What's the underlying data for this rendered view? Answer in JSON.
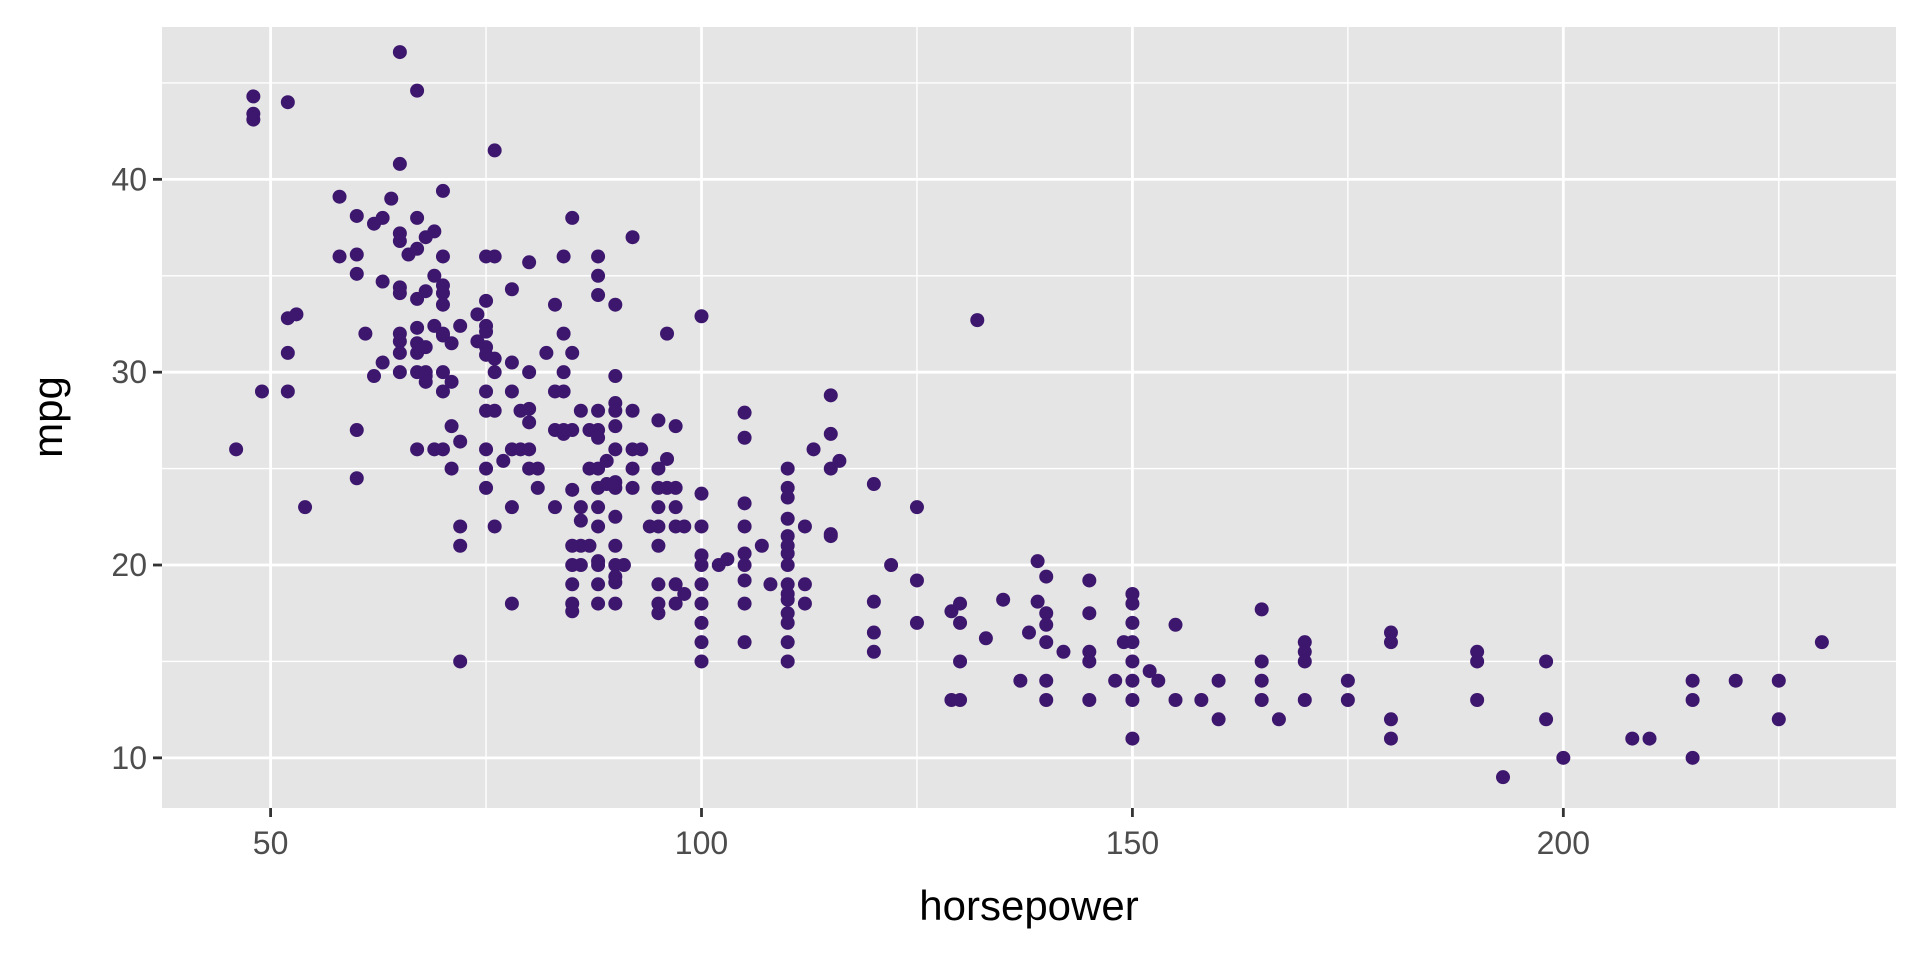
{
  "chart_data": {
    "type": "scatter",
    "title": "",
    "xlabel": "horsepower",
    "ylabel": "mpg",
    "xlim": [
      37.4,
      238.6
    ],
    "ylim": [
      7.4,
      47.9
    ],
    "xticks": [
      50,
      100,
      150,
      200
    ],
    "yticks": [
      10,
      20,
      30,
      40
    ],
    "xtick_labels": [
      "50",
      "100",
      "150",
      "200"
    ],
    "ytick_labels": [
      "10",
      "20",
      "30",
      "40"
    ],
    "grid": true,
    "legend": "none",
    "colors": {
      "panel": "#e5e5e5",
      "grid_major": "#ffffff",
      "point": "#3d176e",
      "tick_text": "#4d4d4d",
      "axis_title": "#000000"
    },
    "points": [
      [
        46,
        26
      ],
      [
        48,
        43.1
      ],
      [
        48,
        43.4
      ],
      [
        48,
        44.3
      ],
      [
        49,
        29
      ],
      [
        52,
        29
      ],
      [
        52,
        31
      ],
      [
        52,
        32.8
      ],
      [
        52,
        44
      ],
      [
        53,
        33
      ],
      [
        54,
        23
      ],
      [
        58,
        36
      ],
      [
        58,
        39.1
      ],
      [
        60,
        36.1
      ],
      [
        60,
        38.1
      ],
      [
        60,
        35.1
      ],
      [
        60,
        27
      ],
      [
        60,
        24.5
      ],
      [
        61,
        32
      ],
      [
        62,
        37.7
      ],
      [
        62,
        29.8
      ],
      [
        63,
        38
      ],
      [
        63,
        34.7
      ],
      [
        63,
        30.5
      ],
      [
        64,
        39
      ],
      [
        65,
        46.6
      ],
      [
        65,
        40.8
      ],
      [
        65,
        37.2
      ],
      [
        65,
        36.8
      ],
      [
        65,
        34.4
      ],
      [
        65,
        34.1
      ],
      [
        65,
        32
      ],
      [
        65,
        31.6
      ],
      [
        65,
        31
      ],
      [
        65,
        30
      ],
      [
        66,
        36.1
      ],
      [
        67,
        44.6
      ],
      [
        67,
        38
      ],
      [
        67,
        36.4
      ],
      [
        67,
        33.8
      ],
      [
        67,
        32.3
      ],
      [
        67,
        31.5
      ],
      [
        67,
        31
      ],
      [
        67,
        30
      ],
      [
        67,
        26
      ],
      [
        68,
        37
      ],
      [
        68,
        34.2
      ],
      [
        68,
        31.3
      ],
      [
        68,
        29.8
      ],
      [
        68,
        29.5
      ],
      [
        68,
        30
      ],
      [
        69,
        37.3
      ],
      [
        69,
        35
      ],
      [
        69,
        32.4
      ],
      [
        69,
        26
      ],
      [
        70,
        39.4
      ],
      [
        70,
        36
      ],
      [
        70,
        34.5
      ],
      [
        70,
        34.1
      ],
      [
        70,
        33.5
      ],
      [
        70,
        32
      ],
      [
        70,
        31.9
      ],
      [
        70,
        30
      ],
      [
        70,
        29
      ],
      [
        70,
        26
      ],
      [
        71,
        31.5
      ],
      [
        71,
        29.5
      ],
      [
        71,
        27.2
      ],
      [
        71,
        25
      ],
      [
        72,
        32.4
      ],
      [
        72,
        26.4
      ],
      [
        72,
        22
      ],
      [
        72,
        21
      ],
      [
        72,
        15
      ],
      [
        74,
        31.6
      ],
      [
        74,
        33
      ],
      [
        75,
        36
      ],
      [
        75,
        33.7
      ],
      [
        75,
        32.4
      ],
      [
        75,
        32.1
      ],
      [
        75,
        31.3
      ],
      [
        75,
        30.9
      ],
      [
        75,
        29
      ],
      [
        75,
        28
      ],
      [
        75,
        26
      ],
      [
        75,
        25
      ],
      [
        75,
        24
      ],
      [
        76,
        36
      ],
      [
        76,
        41.5
      ],
      [
        76,
        30.7
      ],
      [
        76,
        30
      ],
      [
        76,
        28
      ],
      [
        76,
        22
      ],
      [
        77,
        25.4
      ],
      [
        78,
        34.3
      ],
      [
        78,
        30.5
      ],
      [
        78,
        29
      ],
      [
        78,
        26
      ],
      [
        78,
        23
      ],
      [
        78,
        18
      ],
      [
        79,
        28
      ],
      [
        79,
        26
      ],
      [
        80,
        35.7
      ],
      [
        80,
        30
      ],
      [
        80,
        28.1
      ],
      [
        80,
        26
      ],
      [
        80,
        27.4
      ],
      [
        80,
        25
      ],
      [
        81,
        25
      ],
      [
        81,
        24
      ],
      [
        82,
        31
      ],
      [
        83,
        33.5
      ],
      [
        83,
        29
      ],
      [
        83,
        27
      ],
      [
        83,
        23
      ],
      [
        84,
        26.8
      ],
      [
        84,
        27
      ],
      [
        84,
        32
      ],
      [
        84,
        30
      ],
      [
        84,
        29
      ],
      [
        84,
        36
      ],
      [
        85,
        38
      ],
      [
        85,
        31
      ],
      [
        85,
        27
      ],
      [
        85,
        23.9
      ],
      [
        85,
        21
      ],
      [
        85,
        20
      ],
      [
        85,
        19
      ],
      [
        85,
        18
      ],
      [
        85,
        17.6
      ],
      [
        86,
        28
      ],
      [
        86,
        22.3
      ],
      [
        86,
        21
      ],
      [
        86,
        20
      ],
      [
        86,
        23
      ],
      [
        87,
        27
      ],
      [
        87,
        25
      ],
      [
        87,
        21
      ],
      [
        88,
        36
      ],
      [
        88,
        35
      ],
      [
        88,
        34
      ],
      [
        88,
        28
      ],
      [
        88,
        27
      ],
      [
        88,
        26.6
      ],
      [
        88,
        25
      ],
      [
        88,
        24
      ],
      [
        88,
        23
      ],
      [
        88,
        22
      ],
      [
        88,
        20.2
      ],
      [
        88,
        20
      ],
      [
        88,
        19
      ],
      [
        88,
        18
      ],
      [
        89,
        25.4
      ],
      [
        89,
        24.2
      ],
      [
        90,
        33.5
      ],
      [
        90,
        29.8
      ],
      [
        90,
        28.4
      ],
      [
        90,
        28
      ],
      [
        90,
        27.2
      ],
      [
        90,
        26
      ],
      [
        90,
        24.3
      ],
      [
        90,
        24
      ],
      [
        90,
        22.5
      ],
      [
        90,
        21
      ],
      [
        90,
        20
      ],
      [
        90,
        19.4
      ],
      [
        90,
        19.1
      ],
      [
        90,
        18
      ],
      [
        91,
        20
      ],
      [
        92,
        37
      ],
      [
        92,
        28
      ],
      [
        92,
        26
      ],
      [
        92,
        25
      ],
      [
        92,
        24
      ],
      [
        93,
        26
      ],
      [
        94,
        22
      ],
      [
        95,
        27.5
      ],
      [
        95,
        25
      ],
      [
        95,
        24
      ],
      [
        95,
        23
      ],
      [
        95,
        22
      ],
      [
        95,
        21
      ],
      [
        95,
        19
      ],
      [
        95,
        18
      ],
      [
        95,
        17.5
      ],
      [
        96,
        32
      ],
      [
        96,
        25.5
      ],
      [
        96,
        24
      ],
      [
        97,
        27.2
      ],
      [
        97,
        24
      ],
      [
        97,
        23
      ],
      [
        97,
        22
      ],
      [
        97,
        19
      ],
      [
        97,
        18
      ],
      [
        98,
        22
      ],
      [
        98,
        18.5
      ],
      [
        100,
        32.9
      ],
      [
        100,
        23.7
      ],
      [
        100,
        22
      ],
      [
        100,
        20.5
      ],
      [
        100,
        20
      ],
      [
        100,
        19
      ],
      [
        100,
        18
      ],
      [
        100,
        17
      ],
      [
        100,
        16
      ],
      [
        100,
        15
      ],
      [
        102,
        20
      ],
      [
        103,
        20.3
      ],
      [
        105,
        27.9
      ],
      [
        105,
        26.6
      ],
      [
        105,
        23.2
      ],
      [
        105,
        22
      ],
      [
        105,
        20.6
      ],
      [
        105,
        20
      ],
      [
        105,
        19.2
      ],
      [
        105,
        18
      ],
      [
        105,
        16
      ],
      [
        107,
        21
      ],
      [
        108,
        19
      ],
      [
        110,
        25
      ],
      [
        110,
        24
      ],
      [
        110,
        23.5
      ],
      [
        110,
        22.4
      ],
      [
        110,
        21.5
      ],
      [
        110,
        21
      ],
      [
        110,
        20.6
      ],
      [
        110,
        20
      ],
      [
        110,
        19
      ],
      [
        110,
        18.5
      ],
      [
        110,
        18.2
      ],
      [
        110,
        17.5
      ],
      [
        110,
        17
      ],
      [
        110,
        16
      ],
      [
        110,
        15
      ],
      [
        112,
        22
      ],
      [
        112,
        19
      ],
      [
        112,
        18
      ],
      [
        113,
        26
      ],
      [
        115,
        28.8
      ],
      [
        115,
        26.8
      ],
      [
        115,
        25
      ],
      [
        115,
        21.6
      ],
      [
        115,
        21.5
      ],
      [
        116,
        25.4
      ],
      [
        120,
        24.2
      ],
      [
        120,
        18.1
      ],
      [
        120,
        16.5
      ],
      [
        120,
        15.5
      ],
      [
        122,
        20
      ],
      [
        125,
        23
      ],
      [
        125,
        19.2
      ],
      [
        125,
        17
      ],
      [
        129,
        17.6
      ],
      [
        129,
        13
      ],
      [
        130,
        18
      ],
      [
        130,
        17
      ],
      [
        130,
        15
      ],
      [
        130,
        13
      ],
      [
        132,
        32.7
      ],
      [
        133,
        16.2
      ],
      [
        135,
        18.2
      ],
      [
        137,
        14
      ],
      [
        138,
        16.5
      ],
      [
        139,
        20.2
      ],
      [
        139,
        18.1
      ],
      [
        140,
        19.4
      ],
      [
        140,
        17.5
      ],
      [
        140,
        16.9
      ],
      [
        140,
        16
      ],
      [
        140,
        14
      ],
      [
        140,
        13
      ],
      [
        142,
        15.5
      ],
      [
        145,
        19.2
      ],
      [
        145,
        17.5
      ],
      [
        145,
        15.5
      ],
      [
        145,
        15
      ],
      [
        145,
        13
      ],
      [
        148,
        14
      ],
      [
        149,
        16
      ],
      [
        150,
        18.5
      ],
      [
        150,
        18
      ],
      [
        150,
        17
      ],
      [
        150,
        16
      ],
      [
        150,
        15
      ],
      [
        150,
        14
      ],
      [
        150,
        13
      ],
      [
        150,
        11
      ],
      [
        152,
        14.5
      ],
      [
        153,
        14
      ],
      [
        155,
        16.9
      ],
      [
        155,
        13
      ],
      [
        158,
        13
      ],
      [
        160,
        14
      ],
      [
        160,
        12
      ],
      [
        165,
        17.7
      ],
      [
        165,
        15
      ],
      [
        165,
        14
      ],
      [
        165,
        13
      ],
      [
        167,
        12
      ],
      [
        170,
        16
      ],
      [
        170,
        15.5
      ],
      [
        170,
        15
      ],
      [
        170,
        13
      ],
      [
        175,
        14
      ],
      [
        175,
        13
      ],
      [
        180,
        16.5
      ],
      [
        180,
        16
      ],
      [
        180,
        12
      ],
      [
        180,
        11
      ],
      [
        190,
        15.5
      ],
      [
        190,
        15
      ],
      [
        190,
        13
      ],
      [
        193,
        9
      ],
      [
        198,
        15
      ],
      [
        198,
        12
      ],
      [
        200,
        10
      ],
      [
        208,
        11
      ],
      [
        210,
        11
      ],
      [
        215,
        14
      ],
      [
        215,
        13
      ],
      [
        215,
        10
      ],
      [
        220,
        14
      ],
      [
        225,
        14
      ],
      [
        225,
        12
      ],
      [
        230,
        16
      ]
    ]
  }
}
